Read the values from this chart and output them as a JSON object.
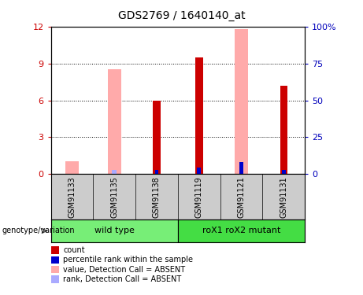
{
  "title": "GDS2769 / 1640140_at",
  "samples": [
    "GSM91133",
    "GSM91135",
    "GSM91138",
    "GSM91119",
    "GSM91121",
    "GSM91131"
  ],
  "groups": [
    {
      "label": "wild type",
      "color": "#77ee77"
    },
    {
      "label": "roX1 roX2 mutant",
      "color": "#44dd44"
    }
  ],
  "group_sample_counts": [
    3,
    3
  ],
  "count_values": [
    0.0,
    0.0,
    6.0,
    9.5,
    0.0,
    7.2
  ],
  "rank_values": [
    0.0,
    0.0,
    0.35,
    0.55,
    0.95,
    0.35
  ],
  "absent_value": [
    1.05,
    8.5,
    0.0,
    0.0,
    11.8,
    0.0
  ],
  "absent_rank": [
    0.0,
    0.35,
    0.0,
    0.0,
    0.0,
    0.0
  ],
  "ylim_left": [
    0,
    12
  ],
  "ylim_right": [
    0,
    100
  ],
  "yticks_left": [
    0,
    3,
    6,
    9,
    12
  ],
  "yticks_right": [
    0,
    25,
    50,
    75,
    100
  ],
  "ytick_labels_left": [
    "0",
    "3",
    "6",
    "9",
    "12"
  ],
  "ytick_labels_right": [
    "0",
    "25",
    "50",
    "75",
    "100%"
  ],
  "color_count": "#cc0000",
  "color_rank": "#0000cc",
  "color_absent_value": "#ffaaaa",
  "color_absent_rank": "#aaaaff",
  "bg_plot": "#ffffff",
  "bg_sample_row": "#cccccc",
  "legend_items": [
    {
      "label": "count",
      "color": "#cc0000"
    },
    {
      "label": "percentile rank within the sample",
      "color": "#0000cc"
    },
    {
      "label": "value, Detection Call = ABSENT",
      "color": "#ffaaaa"
    },
    {
      "label": "rank, Detection Call = ABSENT",
      "color": "#aaaaff"
    }
  ]
}
